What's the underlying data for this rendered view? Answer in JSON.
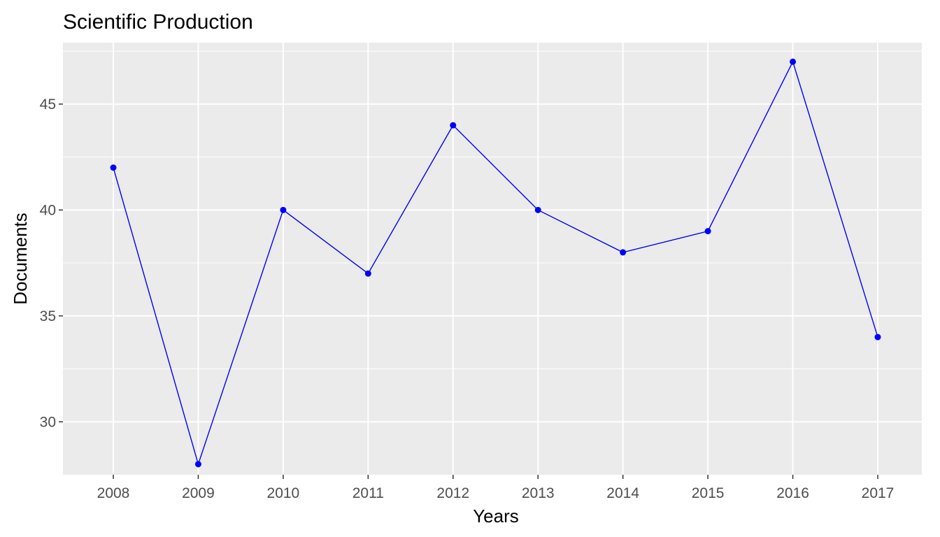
{
  "chart_data": {
    "type": "line",
    "title": "Scientific Production",
    "xlabel": "Years",
    "ylabel": "Documents",
    "x": [
      "2008",
      "2009",
      "2010",
      "2011",
      "2012",
      "2013",
      "2014",
      "2015",
      "2016",
      "2017"
    ],
    "y": [
      42,
      28,
      40,
      37,
      44,
      40,
      38,
      39,
      47,
      34
    ],
    "ylim": [
      27.5,
      47.9
    ],
    "yticks": [
      30,
      35,
      40,
      45
    ],
    "grid": true,
    "colors": {
      "series": "#0000ff",
      "panel": "#ebebeb",
      "grid": "#ffffff"
    }
  }
}
